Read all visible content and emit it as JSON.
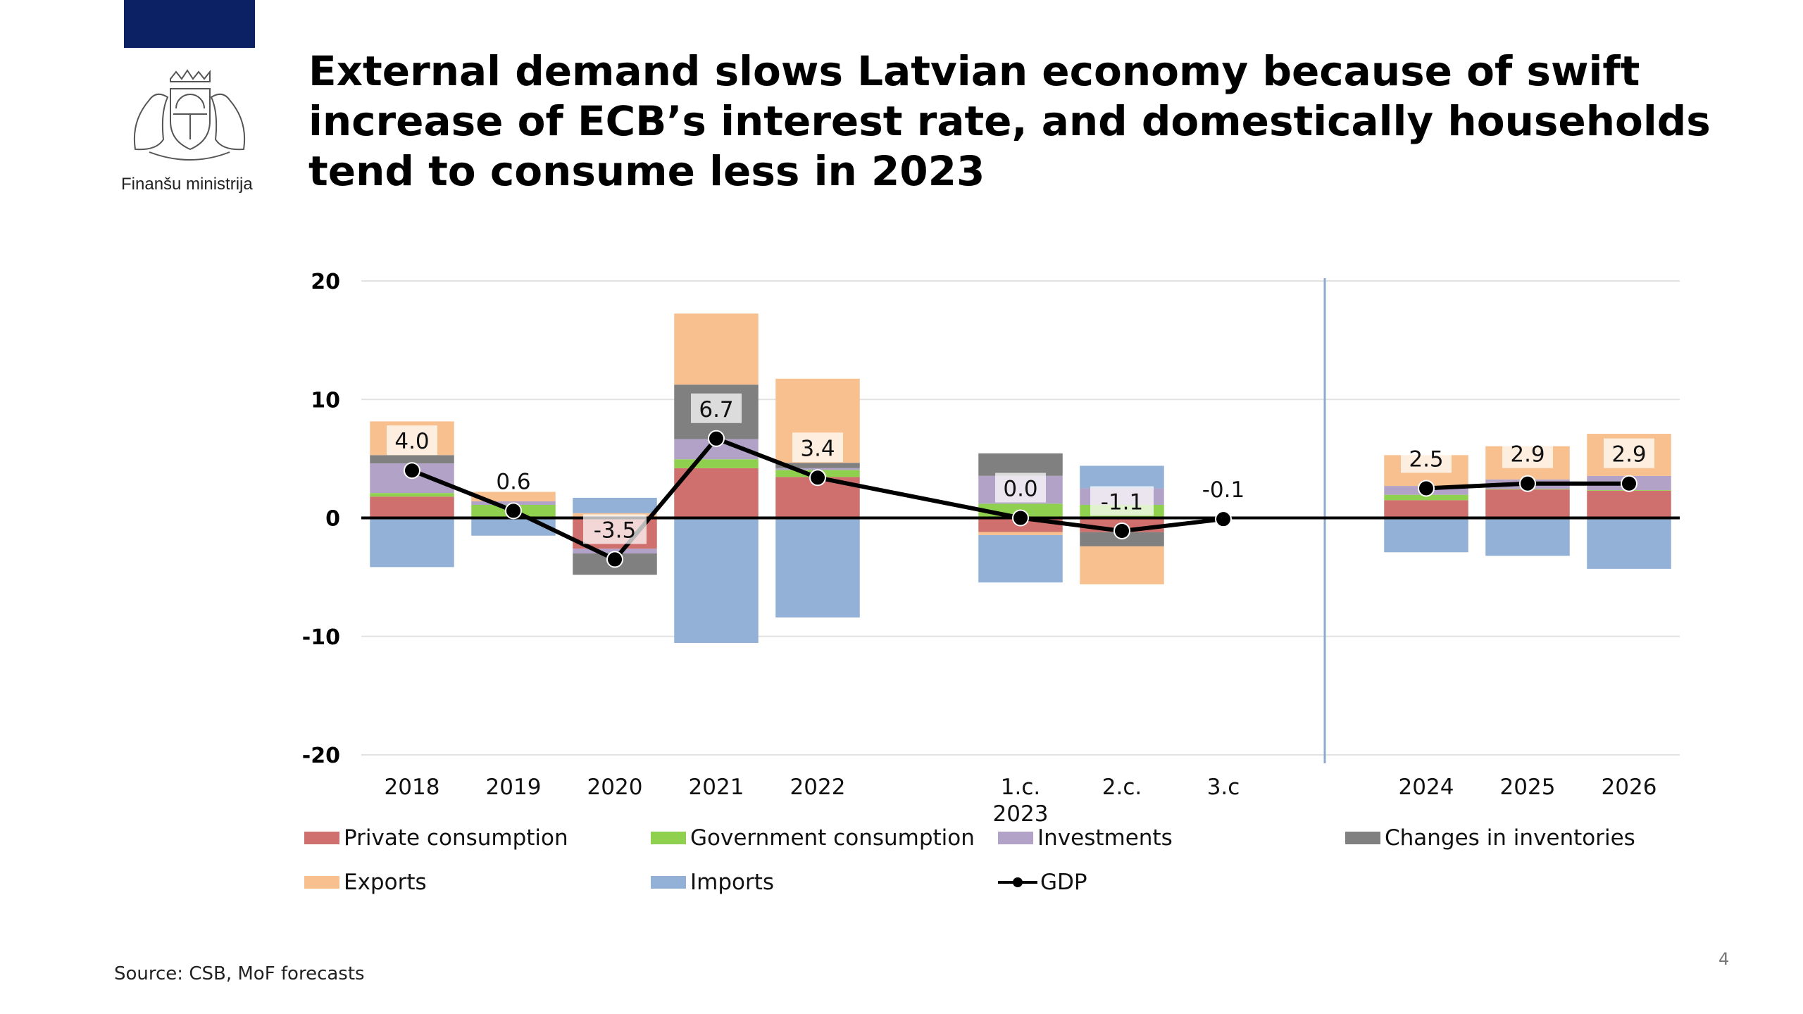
{
  "header": {
    "ministry_name": "Finanšu ministrija",
    "title": "External demand slows Latvian economy because of swift increase of ECB’s interest rate, and domestically households tend to consume less in 2023",
    "crest_icon": "latvia-coat-of-arms-icon",
    "brand_color": "#0b2164"
  },
  "footer": {
    "source": "Source: CSB, MoF forecasts",
    "page_number": "4"
  },
  "chart_data": {
    "type": "bar",
    "stacked": true,
    "title": "",
    "xlabel": "",
    "ylabel": "",
    "ylim": [
      -20,
      20
    ],
    "yticks": [
      20,
      10,
      0,
      -10,
      -20
    ],
    "ytick_labels": [
      "20",
      "10",
      "0",
      "-10",
      "-20"
    ],
    "grid": true,
    "legend_position": "bottom",
    "categories": [
      "2018",
      "2019",
      "2020",
      "2021",
      "2022",
      "1.c.",
      "2.c.",
      "3.c",
      "2024",
      "2025",
      "2026"
    ],
    "category_sublabels": {
      "1.c.": "2023"
    },
    "gaps_after": [
      "2022",
      "3.c"
    ],
    "divider_between": [
      "3.c",
      "2024"
    ],
    "series": [
      {
        "name": "Private consumption",
        "color": "#d0706e",
        "values": [
          1.8,
          0.1,
          -2.6,
          4.2,
          3.45,
          -1.2,
          -1.2,
          null,
          1.5,
          2.4,
          2.3
        ]
      },
      {
        "name": "Government consumption",
        "color": "#8fd14f",
        "values": [
          0.3,
          1.0,
          0.1,
          0.75,
          0.6,
          1.2,
          1.1,
          null,
          0.45,
          0.05,
          0.05
        ]
      },
      {
        "name": "Investments",
        "color": "#b3a2c7",
        "values": [
          2.5,
          0.3,
          -0.4,
          1.7,
          0.15,
          2.35,
          1.4,
          null,
          0.75,
          0.8,
          1.2
        ]
      },
      {
        "name": "Changes in inventories",
        "color": "#808080",
        "values": [
          0.7,
          0.0,
          -1.8,
          4.6,
          0.45,
          1.9,
          -1.2,
          null,
          0.0,
          0.0,
          0.0
        ]
      },
      {
        "name": "Exports",
        "color": "#f9c08f",
        "values": [
          2.85,
          0.8,
          0.3,
          6.0,
          7.1,
          -0.25,
          -3.2,
          null,
          2.6,
          2.8,
          3.55
        ]
      },
      {
        "name": "Imports",
        "color": "#93b1d7",
        "values": [
          -4.15,
          -1.5,
          1.3,
          -10.55,
          -8.4,
          -4.0,
          1.9,
          null,
          -2.9,
          -3.2,
          -4.3
        ]
      }
    ],
    "line_series": {
      "name": "GDP",
      "color": "#000000",
      "values": [
        4.0,
        0.6,
        -3.5,
        6.7,
        3.4,
        0.0,
        -1.1,
        -0.1,
        2.5,
        2.9,
        2.9
      ],
      "labels": [
        "4.0",
        "0.6",
        "-3.5",
        "6.7",
        "3.4",
        "0.0",
        "-1.1",
        "-0.1",
        "2.5",
        "2.9",
        "2.9"
      ]
    },
    "legend": [
      {
        "name": "Private consumption",
        "color": "#d0706e",
        "kind": "bar"
      },
      {
        "name": "Government consumption",
        "color": "#8fd14f",
        "kind": "bar"
      },
      {
        "name": "Investments",
        "color": "#b3a2c7",
        "kind": "bar"
      },
      {
        "name": "Changes in inventories",
        "color": "#808080",
        "kind": "bar"
      },
      {
        "name": "Exports",
        "color": "#f9c08f",
        "kind": "bar"
      },
      {
        "name": "Imports",
        "color": "#93b1d7",
        "kind": "bar"
      },
      {
        "name": "GDP",
        "color": "#000000",
        "kind": "line"
      }
    ]
  }
}
